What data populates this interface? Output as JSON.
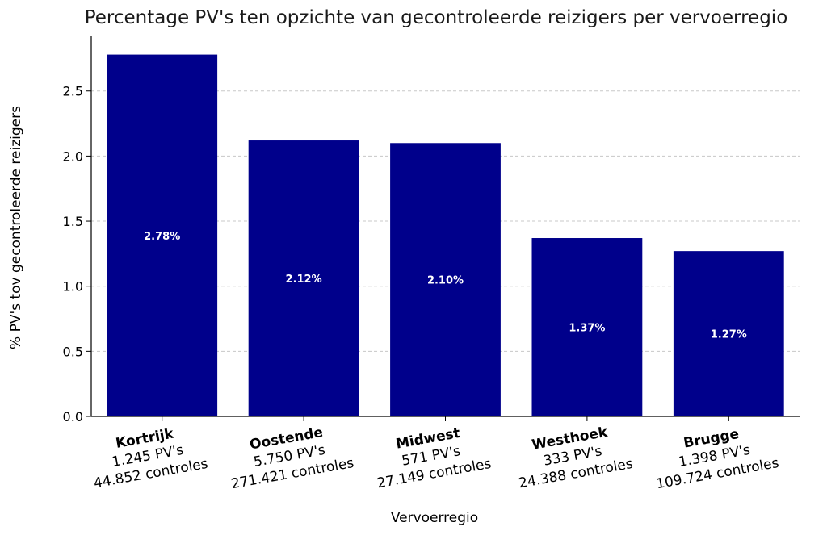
{
  "chart_data": {
    "type": "bar",
    "title": "Percentage PV's ten opzichte van gecontroleerde reizigers per vervoerregio",
    "xlabel": "Vervoerregio",
    "ylabel": "% PV's tov gecontroleerde reizigers",
    "ylim": [
      0,
      2.92
    ],
    "yticks": [
      "0.0",
      "0.5",
      "1.0",
      "1.5",
      "2.0",
      "2.5"
    ],
    "grid": "horizontal, dashed",
    "bar_color": "#00008b",
    "categories": [
      {
        "name": "Kortrijk",
        "pvs": "1.245 PV's",
        "controles": "44.852 controles"
      },
      {
        "name": "Oostende",
        "pvs": "5.750 PV's",
        "controles": "271.421 controles"
      },
      {
        "name": "Midwest",
        "pvs": "571 PV's",
        "controles": "27.149 controles"
      },
      {
        "name": "Westhoek",
        "pvs": "333 PV's",
        "controles": "24.388 controles"
      },
      {
        "name": "Brugge",
        "pvs": "1.398 PV's",
        "controles": "109.724 controles"
      }
    ],
    "values": [
      2.78,
      2.12,
      2.1,
      1.37,
      1.27
    ],
    "value_labels": [
      "2.78%",
      "2.12%",
      "2.10%",
      "1.37%",
      "1.27%"
    ]
  }
}
